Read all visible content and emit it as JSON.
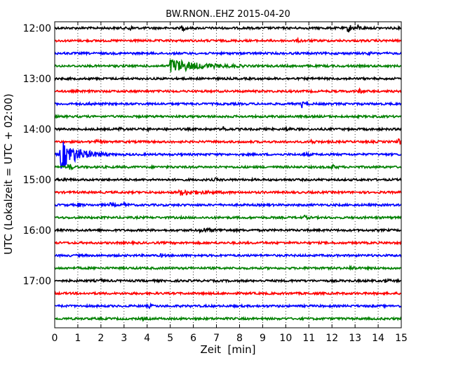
{
  "chart_data": {
    "type": "line",
    "title": "BW.RNON..EHZ 2015-04-20",
    "xlabel": "Zeit  [min]",
    "ylabel": "UTC (Lokalzeit = UTC + 02:00)",
    "xlim": [
      0,
      15
    ],
    "x_ticks": [
      0,
      1,
      2,
      3,
      4,
      5,
      6,
      7,
      8,
      9,
      10,
      11,
      12,
      13,
      14,
      15
    ],
    "x_tick_labels": [
      "0",
      "1",
      "2",
      "3",
      "4",
      "5",
      "6",
      "7",
      "8",
      "9",
      "10",
      "11",
      "12",
      "13",
      "14",
      "15"
    ],
    "y_tick_labels": [
      "12:00",
      "13:00",
      "14:00",
      "15:00",
      "16:00",
      "17:00"
    ],
    "grid": "vertical dotted",
    "trace_colors": [
      "#000000",
      "#ff0000",
      "#0000ff",
      "#008000"
    ],
    "traces": [
      {
        "start": "12:00",
        "events": [
          {
            "t": 3.2,
            "amp": 1.0
          },
          {
            "t": 5.5,
            "amp": 1.1
          },
          {
            "t": 12.7,
            "amp": 2.2
          },
          {
            "t": 13.1,
            "amp": 1.3
          }
        ]
      },
      {
        "start": "12:15",
        "events": [
          {
            "t": 10.5,
            "amp": 0.6
          }
        ]
      },
      {
        "start": "12:30",
        "events": [
          {
            "t": 13.5,
            "amp": 0.5
          }
        ]
      },
      {
        "start": "12:45",
        "events": [
          {
            "t": 5.0,
            "amp": 2.8,
            "dur": 1.1
          }
        ]
      },
      {
        "start": "13:00",
        "events": []
      },
      {
        "start": "13:15",
        "events": [
          {
            "t": 13.2,
            "amp": 0.8
          }
        ]
      },
      {
        "start": "13:30",
        "events": [
          {
            "t": 1.5,
            "amp": 0.5
          },
          {
            "t": 10.7,
            "amp": 1.4
          }
        ]
      },
      {
        "start": "13:45",
        "events": []
      },
      {
        "start": "14:00",
        "events": [
          {
            "t": 2.8,
            "amp": 0.7
          },
          {
            "t": 3.9,
            "amp": 0.6
          },
          {
            "t": 7.3,
            "amp": 0.8
          },
          {
            "t": 10.0,
            "amp": 0.6
          }
        ]
      },
      {
        "start": "14:15",
        "events": [
          {
            "t": 1.8,
            "amp": 0.6
          },
          {
            "t": 11.1,
            "amp": 0.8
          },
          {
            "t": 14.9,
            "amp": 1.5
          }
        ]
      },
      {
        "start": "14:30",
        "events": [
          {
            "t": 0.25,
            "amp": 6.0,
            "dur": 0.7
          },
          {
            "t": 10.8,
            "amp": 0.7
          }
        ]
      },
      {
        "start": "14:45",
        "events": [
          {
            "t": 0.6,
            "amp": 1.6
          },
          {
            "t": 12.0,
            "amp": 0.8
          }
        ]
      },
      {
        "start": "15:00",
        "events": [
          {
            "t": 0.4,
            "amp": 0.6
          },
          {
            "t": 6.9,
            "amp": 0.6
          }
        ]
      },
      {
        "start": "15:15",
        "events": [
          {
            "t": 5.4,
            "amp": 1.0,
            "dur": 0.8
          }
        ]
      },
      {
        "start": "15:30",
        "events": [
          {
            "t": 1.0,
            "amp": 0.7
          },
          {
            "t": 2.4,
            "amp": 0.6
          },
          {
            "t": 3.0,
            "amp": 0.8
          }
        ]
      },
      {
        "start": "15:45",
        "events": [
          {
            "t": 10.8,
            "amp": 0.7
          }
        ]
      },
      {
        "start": "16:00",
        "events": [
          {
            "t": 6.3,
            "amp": 0.7,
            "dur": 0.6
          }
        ]
      },
      {
        "start": "16:15",
        "events": []
      },
      {
        "start": "16:30",
        "events": [
          {
            "t": 4.6,
            "amp": 0.5
          }
        ]
      },
      {
        "start": "16:45",
        "events": [
          {
            "t": 12.8,
            "amp": 0.8
          }
        ]
      },
      {
        "start": "17:00",
        "events": [
          {
            "t": 2.0,
            "amp": 0.5
          },
          {
            "t": 14.3,
            "amp": 0.7
          }
        ]
      },
      {
        "start": "17:15",
        "events": []
      },
      {
        "start": "17:30",
        "events": [
          {
            "t": 4.1,
            "amp": 0.5
          }
        ]
      },
      {
        "start": "17:45",
        "events": [
          {
            "t": 3.8,
            "amp": 0.5
          }
        ]
      }
    ]
  }
}
